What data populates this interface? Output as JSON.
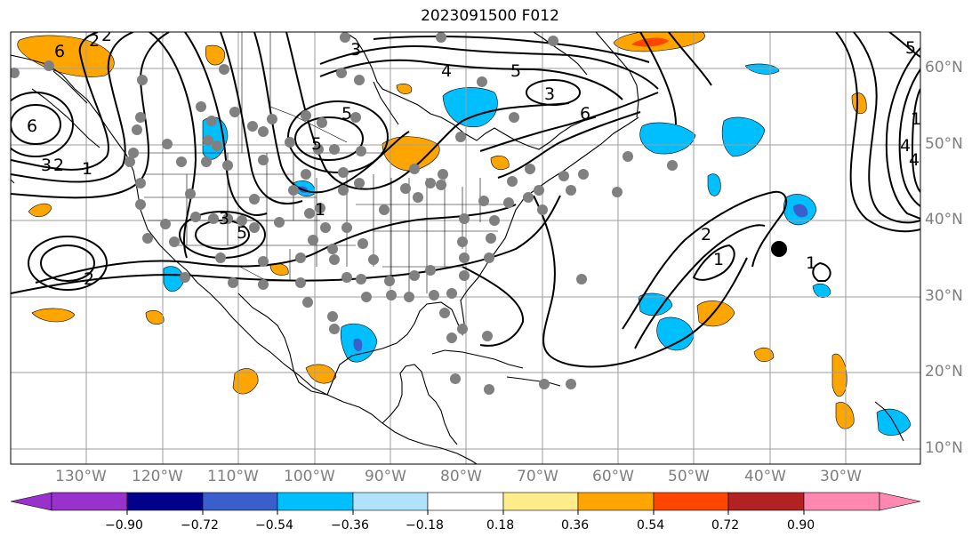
{
  "title": "2023091500 F012",
  "colors": {
    "frame": "#000000",
    "grid": "#9e9e9e",
    "coast": "#000000",
    "contour": "#000000",
    "station": "#808080",
    "storm": "#000000",
    "axis_label": "#7f7f7f"
  },
  "longitude_labels": [
    "130°W",
    "120°W",
    "110°W",
    "100°W",
    "90°W",
    "80°W",
    "70°W",
    "60°W",
    "50°W",
    "40°W",
    "30°W"
  ],
  "latitude_labels": [
    "60°N",
    "50°N",
    "40°N",
    "30°N",
    "20°N",
    "10°N"
  ],
  "contour_labels": [
    "6",
    "2",
    "2",
    "1",
    "3",
    "2",
    "6",
    "4",
    "5",
    "3",
    "6",
    "3",
    "5",
    "1",
    "3",
    "2",
    "5",
    "5",
    "2",
    "1",
    "1",
    "1",
    "5",
    "4",
    "4"
  ],
  "colorbar": {
    "colors": [
      "#9932cc",
      "#00008b",
      "#3a5fcd",
      "#00bfff",
      "#b0e2ff",
      "#ffffff",
      "#ffec8b",
      "#ffa500",
      "#ff4500",
      "#b22222",
      "#ff88b0"
    ],
    "tick_labels": [
      "−0.90",
      "−0.72",
      "−0.54",
      "−0.36",
      "−0.18",
      "0.18",
      "0.36",
      "0.54",
      "0.72",
      "0.90"
    ]
  },
  "storm_marker": {
    "lon": -38,
    "lat": 36
  }
}
